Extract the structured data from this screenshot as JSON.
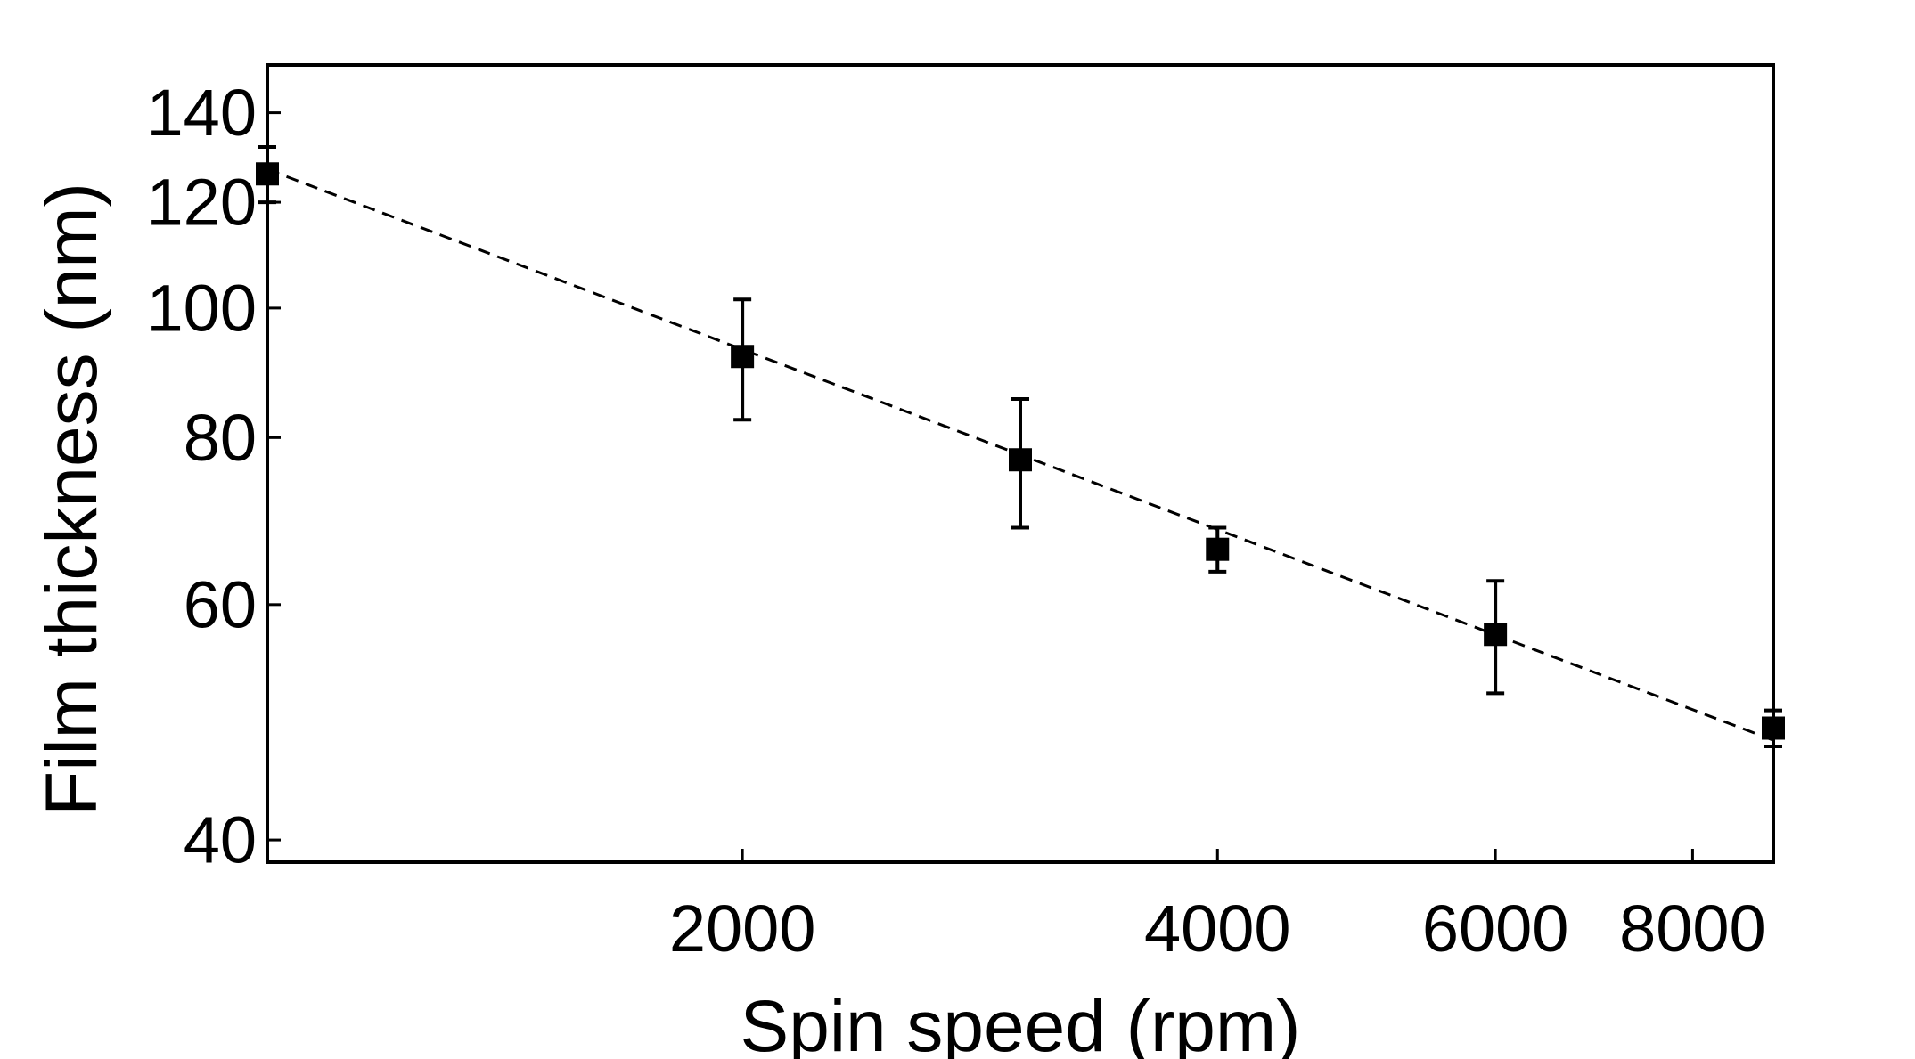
{
  "chart_data": {
    "type": "scatter",
    "title": "",
    "xlabel": "Spin speed (rpm)",
    "ylabel": "Film thickness (nm)",
    "xscale": "log",
    "yscale": "log",
    "xlim": [
      1000,
      9000
    ],
    "ylim": [
      38.5,
      152
    ],
    "xticks": [
      {
        "value": 2000,
        "label": "2000"
      },
      {
        "value": 4000,
        "label": "4000"
      },
      {
        "value": 6000,
        "label": "6000"
      },
      {
        "value": 8000,
        "label": "8000"
      }
    ],
    "yticks": [
      {
        "value": 40,
        "label": "40"
      },
      {
        "value": 60,
        "label": "60"
      },
      {
        "value": 80,
        "label": "80"
      },
      {
        "value": 100,
        "label": "100"
      },
      {
        "value": 120,
        "label": "120"
      },
      {
        "value": 140,
        "label": "140"
      }
    ],
    "grid": false,
    "legend": "none",
    "series": [
      {
        "marker": "square",
        "x": [
          1000,
          2000,
          3000,
          4000,
          6000,
          9000
        ],
        "y": [
          126,
          92,
          77,
          66,
          57,
          48.5
        ],
        "yerr": [
          6,
          9.5,
          8.5,
          2.5,
          5.5,
          1.5
        ]
      }
    ],
    "fit_line": {
      "style": "dashed",
      "x": [
        1000,
        9000
      ],
      "y": [
        127,
        47.5
      ]
    },
    "colors": {
      "markers": "#000000",
      "fit_line": "#000000",
      "axes": "#000000"
    }
  }
}
